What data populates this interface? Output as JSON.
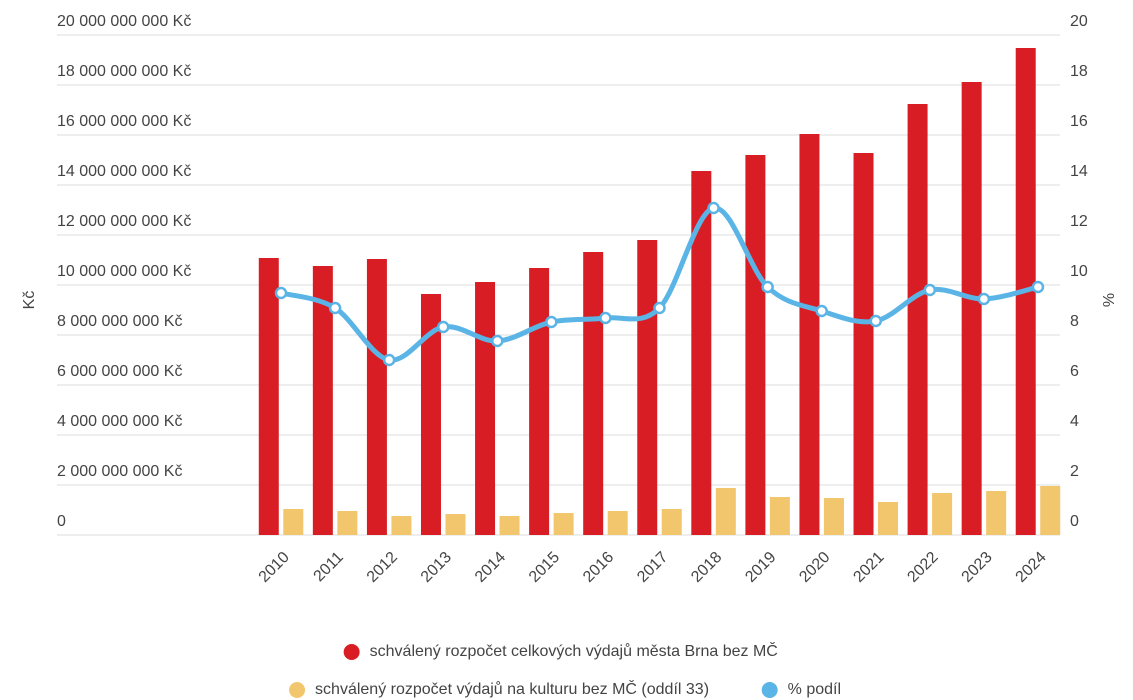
{
  "chart_data": {
    "type": "bar",
    "categories": [
      "2010",
      "2011",
      "2012",
      "2013",
      "2014",
      "2015",
      "2016",
      "2017",
      "2018",
      "2019",
      "2020",
      "2021",
      "2022",
      "2023",
      "2024"
    ],
    "series": [
      {
        "name": "schválený rozpočet celkových výdajů města Brna bez MČ",
        "color": "#d81e24",
        "type": "bar",
        "values": [
          11080000000,
          10760000000,
          11040000000,
          9640000000,
          10120000000,
          10680000000,
          11320000000,
          11800000000,
          14560000000,
          15200000000,
          16040000000,
          15280000000,
          17240000000,
          18120000000,
          19480000000
        ]
      },
      {
        "name": "schválený rozpočet výdajů na kulturu bez MČ (oddíl 33)",
        "color": "#f2c66d",
        "type": "bar",
        "values": [
          1040000000,
          960000000,
          760000000,
          840000000,
          760000000,
          880000000,
          960000000,
          1040000000,
          1880000000,
          1520000000,
          1480000000,
          1320000000,
          1680000000,
          1760000000,
          1960000000
        ]
      },
      {
        "name": "% podíl",
        "color": "#5ab4e5",
        "type": "line",
        "axis": "y2",
        "values": [
          9.68,
          9.08,
          7.0,
          8.32,
          7.76,
          8.52,
          8.68,
          9.08,
          13.08,
          9.92,
          8.96,
          8.56,
          9.8,
          9.44,
          9.92
        ]
      }
    ],
    "ylabel": "Kč",
    "y2label": "%",
    "ylim": [
      0,
      20000000000
    ],
    "yticks": [
      0,
      {
        "value": 2000000000,
        "label": "2 000 000 000 Kč"
      },
      {
        "value": 4000000000,
        "label": "4 000 000 000 Kč"
      },
      {
        "value": 6000000000,
        "label": "6 000 000 000 Kč"
      },
      {
        "value": 8000000000,
        "label": "8 000 000 000 Kč"
      },
      {
        "value": 10000000000,
        "label": "10 000 000 000 Kč"
      },
      {
        "value": 12000000000,
        "label": "12 000 000 000 Kč"
      },
      {
        "value": 14000000000,
        "label": "14 000 000 000 Kč"
      },
      {
        "value": 16000000000,
        "label": "16 000 000 000 Kč"
      },
      {
        "value": 18000000000,
        "label": "18 000 000 000 Kč"
      },
      {
        "value": 20000000000,
        "label": "20 000 000 000 Kč"
      }
    ],
    "y2lim": [
      0,
      20
    ],
    "y2ticks": [
      0,
      2,
      4,
      6,
      8,
      10,
      12,
      14,
      16,
      18,
      20
    ],
    "grid": true,
    "legend": "bottom"
  }
}
